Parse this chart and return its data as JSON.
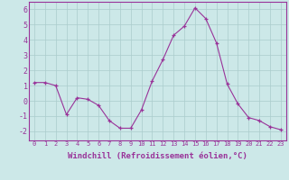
{
  "x": [
    0,
    1,
    2,
    3,
    4,
    5,
    6,
    7,
    8,
    9,
    10,
    11,
    12,
    13,
    14,
    15,
    16,
    17,
    18,
    19,
    20,
    21,
    22,
    23
  ],
  "y": [
    1.2,
    1.2,
    1.0,
    -0.9,
    0.2,
    0.1,
    -0.3,
    -1.3,
    -1.8,
    -1.8,
    -0.6,
    1.3,
    2.7,
    4.3,
    4.9,
    6.1,
    5.4,
    3.8,
    1.1,
    -0.2,
    -1.1,
    -1.3,
    -1.7,
    -1.9
  ],
  "line_color": "#993399",
  "marker": "+",
  "bg_color": "#cce8e8",
  "grid_color": "#aacccc",
  "xlabel": "Windchill (Refroidissement éolien,°C)",
  "ylabel_ticks": [
    -2,
    -1,
    0,
    1,
    2,
    3,
    4,
    5,
    6
  ],
  "xlim": [
    -0.5,
    23.5
  ],
  "ylim": [
    -2.6,
    6.5
  ],
  "tick_label_color": "#993399",
  "xlabel_color": "#993399",
  "spine_color": "#993399",
  "xtick_fontsize": 5.0,
  "ytick_fontsize": 6.0,
  "xlabel_fontsize": 6.5
}
